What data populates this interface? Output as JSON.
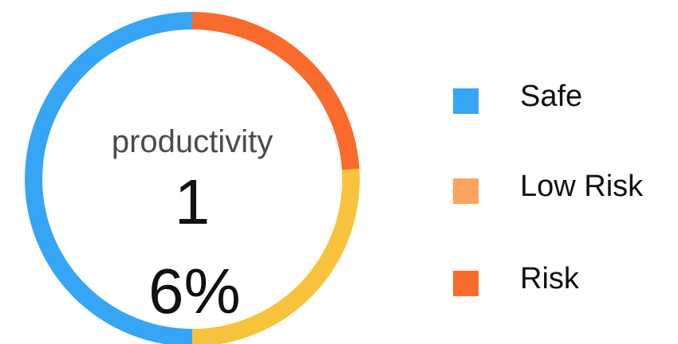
{
  "chart_data": {
    "type": "donut",
    "categories": [
      "Safe",
      "Low Risk",
      "Risk"
    ],
    "values": [
      50,
      26,
      24
    ],
    "colors": [
      "#36a5f5",
      "#f8c33c",
      "#f96b2d"
    ],
    "legend_colors": [
      "#36a5f5",
      "#fca35f",
      "#f96b2d"
    ],
    "center_label": "productivity",
    "center_value": "16%",
    "legend": "right"
  }
}
